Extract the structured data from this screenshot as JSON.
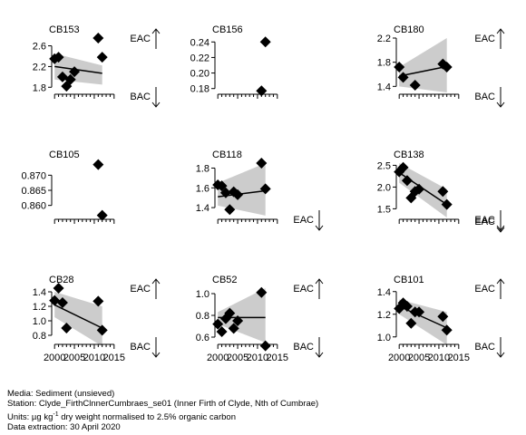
{
  "chart_data": {
    "type": "scatter",
    "panels": [
      {
        "title": "CB153",
        "yticks": [
          "1.8",
          "2.2",
          "2.6"
        ],
        "ylim": [
          1.7,
          2.75
        ],
        "xlim": [
          1999.5,
          2015.5
        ],
        "xticks_labeled": false,
        "eac": "EAC",
        "bac": "BAC",
        "points": [
          [
            2000,
            2.35
          ],
          [
            2001,
            2.38
          ],
          [
            2002,
            2.0
          ],
          [
            2003,
            1.82
          ],
          [
            2004,
            1.95
          ],
          [
            2005,
            2.1
          ],
          [
            2011,
            2.75
          ],
          [
            2012,
            2.38
          ]
        ],
        "trend": [
          [
            2000,
            2.2
          ],
          [
            2012,
            2.07
          ]
        ],
        "band": {
          "upper": [
            2.45,
            2.22
          ],
          "lower": [
            1.95,
            1.85
          ]
        }
      },
      {
        "title": "CB156",
        "yticks": [
          "0.18",
          "0.20",
          "0.22",
          "0.24"
        ],
        "ylim": [
          0.175,
          0.245
        ],
        "xlim": [
          1999.5,
          2015.5
        ],
        "xticks_labeled": false,
        "points": [
          [
            2011,
            0.177
          ],
          [
            2012,
            0.24
          ]
        ]
      },
      {
        "title": "CB180",
        "yticks": [
          "1.4",
          "1.8",
          "2.2"
        ],
        "ylim": [
          1.3,
          2.2
        ],
        "xlim": [
          1999.5,
          2015.5
        ],
        "xticks_labeled": false,
        "eac": "EAC",
        "bac": "BAC",
        "points": [
          [
            2000,
            1.72
          ],
          [
            2001,
            1.55
          ],
          [
            2004,
            1.42
          ],
          [
            2011,
            1.77
          ],
          [
            2012,
            1.72
          ]
        ],
        "trend": [
          [
            2000,
            1.57
          ],
          [
            2012,
            1.73
          ]
        ],
        "band": {
          "upper": [
            1.72,
            2.2
          ],
          "lower": [
            1.4,
            1.3
          ]
        }
      },
      {
        "title": "CB105",
        "yticks": [
          "0.860",
          "0.865",
          "0.870"
        ],
        "ylim": [
          0.856,
          0.874
        ],
        "xlim": [
          1999.5,
          2015.5
        ],
        "xticks_labeled": false,
        "points": [
          [
            2011,
            0.8735
          ],
          [
            2012,
            0.8567
          ]
        ]
      },
      {
        "title": "CB118",
        "yticks": [
          "1.4",
          "1.6",
          "1.8"
        ],
        "ylim": [
          1.3,
          1.85
        ],
        "xlim": [
          1999.5,
          2015.5
        ],
        "xticks_labeled": false,
        "eac": "EAC",
        "points": [
          [
            2000,
            1.63
          ],
          [
            2001,
            1.62
          ],
          [
            2002,
            1.55
          ],
          [
            2003,
            1.38
          ],
          [
            2004,
            1.56
          ],
          [
            2005,
            1.53
          ],
          [
            2011,
            1.85
          ],
          [
            2012,
            1.59
          ]
        ],
        "trend": [
          [
            2000,
            1.51
          ],
          [
            2012,
            1.57
          ]
        ],
        "band": {
          "upper": [
            1.65,
            1.85
          ],
          "lower": [
            1.42,
            1.32
          ]
        }
      },
      {
        "title": "CB138",
        "yticks": [
          "1.5",
          "2.0",
          "2.5"
        ],
        "ylim": [
          1.3,
          2.55
        ],
        "xlim": [
          1999.5,
          2015.5
        ],
        "xticks_labeled": false,
        "eac": "EAC",
        "bac": "EAC",
        "points": [
          [
            2000,
            2.35
          ],
          [
            2001,
            2.45
          ],
          [
            2002,
            2.15
          ],
          [
            2003,
            1.75
          ],
          [
            2004,
            1.9
          ],
          [
            2005,
            1.95
          ],
          [
            2011,
            1.9
          ],
          [
            2012,
            1.6
          ]
        ],
        "trend": [
          [
            2000,
            2.33
          ],
          [
            2012,
            1.6
          ]
        ],
        "band": {
          "upper": [
            2.55,
            1.95
          ],
          "lower": [
            2.1,
            1.3
          ]
        }
      },
      {
        "title": "CB28",
        "yticks": [
          "0.8",
          "1.0",
          "1.2",
          "1.4"
        ],
        "ylim": [
          0.7,
          1.45
        ],
        "xlim": [
          1999.5,
          2015.5
        ],
        "xticks_labeled": true,
        "eac": "EAC",
        "bac": "BAC",
        "points": [
          [
            2000,
            1.28
          ],
          [
            2001,
            1.45
          ],
          [
            2002,
            1.25
          ],
          [
            2003,
            0.9
          ],
          [
            2011,
            1.27
          ],
          [
            2012,
            0.87
          ]
        ],
        "trend": [
          [
            2000,
            1.22
          ],
          [
            2012,
            0.9
          ]
        ],
        "band": {
          "upper": [
            1.4,
            1.2
          ],
          "lower": [
            1.05,
            0.65
          ]
        }
      },
      {
        "title": "CB52",
        "yticks": [
          "0.6",
          "0.8",
          "1.0"
        ],
        "ylim": [
          0.55,
          1.05
        ],
        "xlim": [
          1999.5,
          2015.5
        ],
        "xticks_labeled": true,
        "eac": "EAC",
        "bac": "BAC",
        "points": [
          [
            2000,
            0.72
          ],
          [
            2001,
            0.65
          ],
          [
            2002,
            0.77
          ],
          [
            2003,
            0.82
          ],
          [
            2004,
            0.68
          ],
          [
            2005,
            0.75
          ],
          [
            2011,
            1.01
          ],
          [
            2012,
            0.52
          ]
        ],
        "trend": [
          [
            2000,
            0.78
          ],
          [
            2012,
            0.78
          ]
        ],
        "band": {
          "upper": [
            0.83,
            1.05
          ],
          "lower": [
            0.72,
            0.55
          ]
        }
      },
      {
        "title": "CB101",
        "yticks": [
          "1.0",
          "1.2",
          "1.4"
        ],
        "ylim": [
          0.95,
          1.43
        ],
        "xlim": [
          1999.5,
          2015.5
        ],
        "xticks_labeled": true,
        "eac": "EAC",
        "bac": "BAC",
        "points": [
          [
            2000,
            1.25
          ],
          [
            2001,
            1.3
          ],
          [
            2002,
            1.27
          ],
          [
            2003,
            1.12
          ],
          [
            2004,
            1.22
          ],
          [
            2005,
            1.22
          ],
          [
            2011,
            1.18
          ],
          [
            2012,
            1.06
          ]
        ],
        "trend": [
          [
            2000,
            1.27
          ],
          [
            2012,
            1.08
          ]
        ],
        "band": {
          "upper": [
            1.33,
            1.22
          ],
          "lower": [
            1.2,
            0.93
          ]
        }
      }
    ],
    "xtick_labels": [
      {
        "value": 2000,
        "label": "2000"
      },
      {
        "value": 2005,
        "label": "2005"
      },
      {
        "value": 2010,
        "label": "2010"
      },
      {
        "value": 2015,
        "label": "2015"
      }
    ],
    "colors": {
      "band": "#cccccc",
      "point": "#000000",
      "line": "#000000"
    }
  },
  "footer": {
    "media": "Media: Sediment (unsieved)",
    "station": "Station: Clyde_FirthClnnerCumbraes_se01 (Inner Firth of Clyde, Nth of Cumbrae)",
    "units_prefix": "Units:  µg kg",
    "units_sup": "-1",
    "units_suffix": " dry weight normalised to 2.5% organic carbon",
    "extraction": "Data extraction: 30 April 2020"
  }
}
